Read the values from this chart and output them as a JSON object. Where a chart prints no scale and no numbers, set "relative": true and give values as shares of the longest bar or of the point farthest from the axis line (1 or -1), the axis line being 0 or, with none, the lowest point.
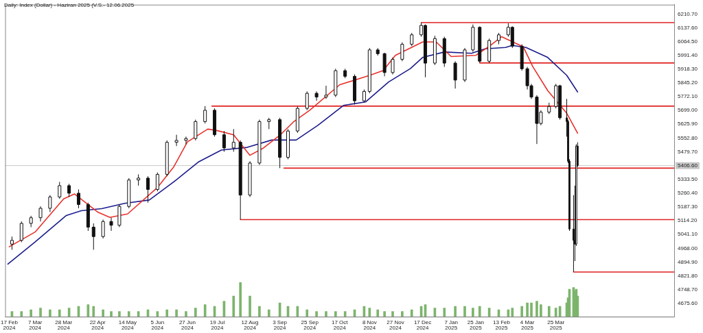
{
  "chart_data": [
    {
      "type": "candlestick",
      "title": "Daily: Index (Dollar) -  Haziran 2025 (V.S.- 12.06.2025",
      "x": [
        "2024-02-19",
        "2024-02-26",
        "2024-03-04",
        "2024-03-11",
        "2024-03-18",
        "2024-03-25",
        "2024-04-01",
        "2024-04-08",
        "2024-04-15",
        "2024-04-19",
        "2024-04-26",
        "2024-05-02",
        "2024-05-08",
        "2024-05-15",
        "2024-05-22",
        "2024-05-29",
        "2024-06-05",
        "2024-06-12",
        "2024-06-19",
        "2024-06-26",
        "2024-07-03",
        "2024-07-10",
        "2024-07-17",
        "2024-07-24",
        "2024-07-31",
        "2024-08-05",
        "2024-08-12",
        "2024-08-19",
        "2024-08-26",
        "2024-09-03",
        "2024-09-09",
        "2024-09-16",
        "2024-09-23",
        "2024-09-30",
        "2024-10-07",
        "2024-10-14",
        "2024-10-21",
        "2024-10-28",
        "2024-11-04",
        "2024-11-08",
        "2024-11-14",
        "2024-11-19",
        "2024-11-25",
        "2024-12-02",
        "2024-12-09",
        "2024-12-16",
        "2024-12-19",
        "2024-12-26",
        "2025-01-02",
        "2025-01-10",
        "2025-01-17",
        "2025-01-23",
        "2025-01-28",
        "2025-02-04",
        "2025-02-11",
        "2025-02-18",
        "2025-02-21",
        "2025-02-28",
        "2025-03-04",
        "2025-03-07",
        "2025-03-11",
        "2025-03-14",
        "2025-03-20",
        "2025-03-25",
        "2025-03-28",
        "2025-04-02",
        "2025-04-03",
        "2025-04-04",
        "2025-04-07",
        "2025-04-08",
        "2025-04-09",
        "2025-04-10"
      ],
      "ohlc": [
        [
          4990,
          5030,
          4960,
          5010
        ],
        [
          5010,
          5110,
          5000,
          5100
        ],
        [
          5100,
          5140,
          5080,
          5130
        ],
        [
          5130,
          5190,
          5110,
          5180
        ],
        [
          5180,
          5250,
          5160,
          5240
        ],
        [
          5240,
          5320,
          5230,
          5300
        ],
        [
          5300,
          5310,
          5240,
          5260
        ],
        [
          5260,
          5280,
          5180,
          5200
        ],
        [
          5200,
          5210,
          5060,
          5080
        ],
        [
          5080,
          5100,
          4960,
          5030
        ],
        [
          5030,
          5120,
          5020,
          5110
        ],
        [
          5110,
          5130,
          5060,
          5090
        ],
        [
          5090,
          5200,
          5080,
          5190
        ],
        [
          5190,
          5340,
          5180,
          5330
        ],
        [
          5330,
          5360,
          5300,
          5340
        ],
        [
          5340,
          5350,
          5210,
          5280
        ],
        [
          5280,
          5370,
          5270,
          5360
        ],
        [
          5360,
          5540,
          5350,
          5530
        ],
        [
          5530,
          5570,
          5510,
          5540
        ],
        [
          5540,
          5560,
          5520,
          5550
        ],
        [
          5550,
          5650,
          5540,
          5640
        ],
        [
          5640,
          5722,
          5630,
          5700
        ],
        [
          5700,
          5710,
          5560,
          5570
        ],
        [
          5570,
          5590,
          5480,
          5500
        ],
        [
          5500,
          5600,
          5480,
          5530
        ],
        [
          5530,
          5540,
          5120,
          5250
        ],
        [
          5250,
          5430,
          5240,
          5420
        ],
        [
          5420,
          5650,
          5410,
          5640
        ],
        [
          5640,
          5660,
          5600,
          5650
        ],
        [
          5650,
          5660,
          5393,
          5450
        ],
        [
          5450,
          5600,
          5440,
          5590
        ],
        [
          5590,
          5720,
          5580,
          5710
        ],
        [
          5710,
          5800,
          5700,
          5790
        ],
        [
          5790,
          5800,
          5750,
          5770
        ],
        [
          5770,
          5830,
          5760,
          5780
        ],
        [
          5780,
          5920,
          5770,
          5910
        ],
        [
          5910,
          5920,
          5870,
          5880
        ],
        [
          5880,
          5890,
          5730,
          5750
        ],
        [
          5750,
          5810,
          5740,
          5800
        ],
        [
          5800,
          6030,
          5790,
          6020
        ],
        [
          6020,
          6030,
          5990,
          6000
        ],
        [
          6000,
          6005,
          5880,
          5900
        ],
        [
          5900,
          5980,
          5890,
          5970
        ],
        [
          5970,
          6060,
          5960,
          6050
        ],
        [
          6050,
          6110,
          6040,
          6100
        ],
        [
          6100,
          6165,
          6090,
          6150
        ],
        [
          6150,
          6155,
          5875,
          5950
        ],
        [
          5950,
          6095,
          5940,
          6080
        ],
        [
          6080,
          6090,
          5930,
          5950
        ],
        [
          5950,
          5960,
          5815,
          5860
        ],
        [
          5860,
          6030,
          5850,
          6020
        ],
        [
          6020,
          6155,
          6010,
          6140
        ],
        [
          6140,
          6145,
          5951,
          5960
        ],
        [
          5960,
          6080,
          5950,
          6070
        ],
        [
          6070,
          6110,
          6050,
          6100
        ],
        [
          6100,
          6161,
          6090,
          6140
        ],
        [
          6140,
          6145,
          6030,
          6040
        ],
        [
          6040,
          6050,
          5910,
          5920
        ],
        [
          5920,
          5930,
          5810,
          5830
        ],
        [
          5830,
          5840,
          5760,
          5770
        ],
        [
          5770,
          5780,
          5521,
          5630
        ],
        [
          5630,
          5700,
          5620,
          5690
        ],
        [
          5690,
          5740,
          5680,
          5720
        ],
        [
          5720,
          5840,
          5710,
          5830
        ],
        [
          5830,
          5835,
          5650,
          5660
        ],
        [
          5660,
          5760,
          5560,
          5640
        ],
        [
          5640,
          5650,
          5420,
          5430
        ],
        [
          5430,
          5440,
          5060,
          5070
        ],
        [
          5070,
          5250,
          4842,
          5010
        ],
        [
          5010,
          5300,
          4900,
          4990
        ],
        [
          4990,
          5520,
          4980,
          5510
        ],
        [
          5510,
          5530,
          5400,
          5406.6
        ]
      ],
      "series": [
        {
          "type": "line",
          "color": "#e8302a",
          "x": [
            "2024-02-17",
            "2024-03-07",
            "2024-03-28",
            "2024-04-05",
            "2024-04-22",
            "2024-05-01",
            "2024-05-14",
            "2024-06-05",
            "2024-06-17",
            "2024-06-27",
            "2024-07-12",
            "2024-07-19",
            "2024-07-31",
            "2024-08-12",
            "2024-08-22",
            "2024-09-03",
            "2024-09-13",
            "2024-09-25",
            "2024-10-17",
            "2024-11-08",
            "2024-11-18",
            "2024-11-27",
            "2024-12-17",
            "2024-12-27",
            "2025-01-07",
            "2025-01-25",
            "2025-02-05",
            "2025-02-13",
            "2025-03-01",
            "2025-03-08",
            "2025-03-19",
            "2025-04-02",
            "2025-04-10"
          ],
          "values": [
            4976,
            5054,
            5230,
            5256,
            5160,
            5132,
            5150,
            5290,
            5400,
            5532,
            5600,
            5592,
            5570,
            5461,
            5500,
            5567,
            5638,
            5700,
            5835,
            5885,
            5910,
            5991,
            6062,
            6062,
            5985,
            5991,
            6044,
            6090,
            6037,
            5932,
            5804,
            5684,
            5578
          ]
        },
        {
          "type": "line",
          "color": "#1c1c8c",
          "x": [
            "2024-02-16",
            "2024-03-07",
            "2024-03-30",
            "2024-04-10",
            "2024-04-25",
            "2024-05-12",
            "2024-05-30",
            "2024-06-17",
            "2024-07-05",
            "2024-07-22",
            "2024-08-10",
            "2024-08-28",
            "2024-09-15",
            "2024-10-01",
            "2024-10-20",
            "2024-11-05",
            "2024-11-22",
            "2024-12-08",
            "2024-12-17",
            "2025-01-02",
            "2025-01-22",
            "2025-02-01",
            "2025-02-16",
            "2025-02-21",
            "2025-03-03",
            "2025-03-19",
            "2025-04-02",
            "2025-04-10"
          ],
          "values": [
            4884,
            5001,
            5142,
            5167,
            5178,
            5206,
            5224,
            5320,
            5425,
            5489,
            5503,
            5542,
            5542,
            5620,
            5726,
            5744,
            5850,
            5921,
            5980,
            6009,
            6002,
            6026,
            6033,
            6044,
            6033,
            5980,
            5885,
            5797
          ]
        },
        {
          "type": "line",
          "color": "#e02020",
          "x": [
            "2024-12-16",
            "2025-06-20"
          ],
          "values": [
            6165,
            6165
          ]
        },
        {
          "type": "line",
          "color": "#e02020",
          "x": [
            "2025-01-28",
            "2025-06-20"
          ],
          "values": [
            5951,
            5951
          ]
        },
        {
          "type": "line",
          "color": "#e02020",
          "x": [
            "2024-07-15",
            "2025-06-20"
          ],
          "values": [
            5722,
            5722
          ]
        },
        {
          "type": "line",
          "color": "#e02020",
          "x": [
            "2024-09-06",
            "2025-06-20"
          ],
          "values": [
            5393,
            5393
          ]
        },
        {
          "type": "line",
          "color": "#e02020",
          "x": [
            "2024-08-05",
            "2025-06-20"
          ],
          "values": [
            5120,
            5120
          ]
        },
        {
          "type": "line",
          "color": "#e02020",
          "x": [
            "2025-04-07",
            "2025-06-20"
          ],
          "values": [
            4842,
            4842
          ]
        }
      ],
      "ref_lines": [
        {
          "axis": "y",
          "value": 5406.6,
          "label": "5406.60",
          "color": "#c8c8c8"
        }
      ],
      "xlim": [
        "2024-02-14",
        "2025-06-20"
      ],
      "ylim": [
        4605,
        6260
      ],
      "xticks": [
        {
          "value": "2024-02-17",
          "label": "17 Feb 2024"
        },
        {
          "value": "2024-03-07",
          "label": "7 Mar 2024"
        },
        {
          "value": "2024-03-28",
          "label": "28 Mar 2024"
        },
        {
          "value": "2024-04-22",
          "label": "22 Apr 2024"
        },
        {
          "value": "2024-05-14",
          "label": "14 May 2024"
        },
        {
          "value": "2024-06-05",
          "label": "5 Jun 2024"
        },
        {
          "value": "2024-06-27",
          "label": "27 Jun 2024"
        },
        {
          "value": "2024-07-19",
          "label": "19 Jul 2024"
        },
        {
          "value": "2024-08-12",
          "label": "12 Aug 2024"
        },
        {
          "value": "2024-09-03",
          "label": "3 Sep 2024"
        },
        {
          "value": "2024-09-25",
          "label": "25 Sep 2024"
        },
        {
          "value": "2024-10-17",
          "label": "17 Oct 2024"
        },
        {
          "value": "2024-11-08",
          "label": "8 Nov 2024"
        },
        {
          "value": "2024-11-27",
          "label": "27 Nov 2024"
        },
        {
          "value": "2024-12-17",
          "label": "17 Dec 2024"
        },
        {
          "value": "2025-01-07",
          "label": "7 Jan 2025"
        },
        {
          "value": "2025-01-25",
          "label": "25 Jan 2025"
        },
        {
          "value": "2025-02-13",
          "label": "13 Feb 2025"
        },
        {
          "value": "2025-03-04",
          "label": "4 Mar 2025"
        },
        {
          "value": "2025-03-25",
          "label": "25 Mar 2025"
        }
      ],
      "yticks": [
        {
          "value": 6210.7,
          "label": "6210.70"
        },
        {
          "value": 6137.6,
          "label": "6137.60"
        },
        {
          "value": 6064.5,
          "label": "6064.50"
        },
        {
          "value": 5991.4,
          "label": "5991.40"
        },
        {
          "value": 5918.3,
          "label": "5918.30"
        },
        {
          "value": 5845.2,
          "label": "5845.20"
        },
        {
          "value": 5772.1,
          "label": "5772.10"
        },
        {
          "value": 5699,
          "label": "5699.00"
        },
        {
          "value": 5625.9,
          "label": "5625.90"
        },
        {
          "value": 5552.8,
          "label": "5552.80"
        },
        {
          "value": 5479.7,
          "label": "5479.70"
        },
        {
          "value": 5333.5,
          "label": "5333.50"
        },
        {
          "value": 5260.4,
          "label": "5260.40"
        },
        {
          "value": 5187.3,
          "label": "5187.30"
        },
        {
          "value": 5114.2,
          "label": "5114.20"
        },
        {
          "value": 5041.1,
          "label": "5041.10"
        },
        {
          "value": 4968,
          "label": "4968.00"
        },
        {
          "value": 4894.9,
          "label": "4894.90"
        },
        {
          "value": 4821.8,
          "label": "4821.80"
        },
        {
          "value": 4748.7,
          "label": "4748.70"
        },
        {
          "value": 4675.6,
          "label": "4675.60"
        }
      ],
      "marker": "none",
      "legend": false,
      "grid": false
    },
    {
      "type": "bar",
      "relative": true,
      "tick_labels": false,
      "color": "#7cb46c",
      "xlim": [
        "2024-02-14",
        "2025-06-20"
      ],
      "x": [
        "2024-02-19",
        "2024-02-26",
        "2024-03-04",
        "2024-03-11",
        "2024-03-18",
        "2024-03-25",
        "2024-04-01",
        "2024-04-08",
        "2024-04-15",
        "2024-04-19",
        "2024-04-26",
        "2024-05-02",
        "2024-05-08",
        "2024-05-15",
        "2024-05-22",
        "2024-05-29",
        "2024-06-05",
        "2024-06-12",
        "2024-06-19",
        "2024-06-26",
        "2024-07-03",
        "2024-07-10",
        "2024-07-17",
        "2024-07-24",
        "2024-07-31",
        "2024-08-05",
        "2024-08-12",
        "2024-08-19",
        "2024-08-26",
        "2024-09-03",
        "2024-09-09",
        "2024-09-16",
        "2024-09-23",
        "2024-09-30",
        "2024-10-07",
        "2024-10-14",
        "2024-10-21",
        "2024-10-28",
        "2024-11-04",
        "2024-11-08",
        "2024-11-14",
        "2024-11-19",
        "2024-11-25",
        "2024-12-02",
        "2024-12-09",
        "2024-12-16",
        "2024-12-19",
        "2024-12-26",
        "2025-01-02",
        "2025-01-10",
        "2025-01-17",
        "2025-01-23",
        "2025-01-28",
        "2025-02-04",
        "2025-02-11",
        "2025-02-18",
        "2025-02-21",
        "2025-02-28",
        "2025-03-04",
        "2025-03-07",
        "2025-03-11",
        "2025-03-14",
        "2025-03-20",
        "2025-03-25",
        "2025-03-28",
        "2025-04-02",
        "2025-04-03",
        "2025-04-04",
        "2025-04-07",
        "2025-04-08",
        "2025-04-09",
        "2025-04-10"
      ],
      "values": [
        0.15,
        0.15,
        0.2,
        0.25,
        0.2,
        0.2,
        0.25,
        0.3,
        0.35,
        0.3,
        0.2,
        0.15,
        0.15,
        0.15,
        0.15,
        0.2,
        0.15,
        0.2,
        0.2,
        0.15,
        0.25,
        0.35,
        0.3,
        0.45,
        0.6,
        1,
        0.6,
        0.3,
        0.2,
        0.4,
        0.3,
        0.3,
        0.2,
        0.15,
        0.15,
        0.15,
        0.15,
        0.2,
        0.3,
        0.25,
        0.2,
        0.15,
        0.15,
        0.15,
        0.2,
        0.3,
        0.35,
        0.25,
        0.25,
        0.3,
        0.3,
        0.25,
        0.3,
        0.25,
        0.2,
        0.2,
        0.25,
        0.3,
        0.4,
        0.4,
        0.45,
        0.35,
        0.3,
        0.25,
        0.3,
        0.4,
        0.55,
        0.8,
        0.85,
        0.75,
        0.8,
        0.6
      ]
    }
  ]
}
